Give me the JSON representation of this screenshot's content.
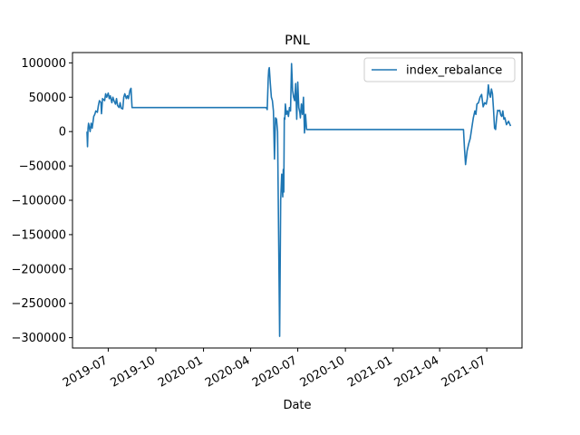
{
  "chart_data": {
    "type": "line",
    "title": "PNL",
    "xlabel": "Date",
    "ylabel": "",
    "ylim": [
      -315000,
      115000
    ],
    "xlim": [
      "2019-04-23",
      "2021-09-07"
    ],
    "yticks": [
      100000,
      50000,
      0,
      -50000,
      -100000,
      -150000,
      -200000,
      -250000,
      -300000
    ],
    "ytick_labels": [
      "100000",
      "50000",
      "0",
      "−50000",
      "−100000",
      "−150000",
      "−200000",
      "−250000",
      "−300000"
    ],
    "xticks": [
      "2019-07-01",
      "2019-10-01",
      "2020-01-01",
      "2020-04-01",
      "2020-07-01",
      "2020-10-01",
      "2021-01-01",
      "2021-04-01",
      "2021-07-01"
    ],
    "xtick_labels": [
      "2019-07",
      "2019-10",
      "2020-01",
      "2020-04",
      "2020-07",
      "2020-10",
      "2021-01",
      "2021-04",
      "2021-07"
    ],
    "legend": {
      "placement": "top-right",
      "entries": [
        "index_rebalance"
      ]
    },
    "grid": false,
    "series": [
      {
        "name": "index_rebalance",
        "color": "#1f77b4",
        "x": [
          "2019-05-21",
          "2019-05-22",
          "2019-05-23",
          "2019-05-24",
          "2019-05-27",
          "2019-05-29",
          "2019-05-31",
          "2019-06-03",
          "2019-06-05",
          "2019-06-07",
          "2019-06-10",
          "2019-06-12",
          "2019-06-14",
          "2019-06-17",
          "2019-06-18",
          "2019-06-20",
          "2019-06-24",
          "2019-06-26",
          "2019-06-28",
          "2019-07-01",
          "2019-07-03",
          "2019-07-05",
          "2019-07-08",
          "2019-07-10",
          "2019-07-12",
          "2019-07-15",
          "2019-07-17",
          "2019-07-19",
          "2019-07-22",
          "2019-07-24",
          "2019-07-26",
          "2019-07-29",
          "2019-07-31",
          "2019-08-02",
          "2019-08-05",
          "2019-08-07",
          "2019-08-09",
          "2019-08-12",
          "2019-08-14",
          "2019-08-16",
          "2019-08-18",
          "2020-05-01",
          "2020-05-03",
          "2020-05-05",
          "2020-05-06",
          "2020-05-07",
          "2020-05-09",
          "2020-05-11",
          "2020-05-13",
          "2020-05-15",
          "2020-05-17",
          "2020-05-19",
          "2020-05-21",
          "2020-05-23",
          "2020-05-25",
          "2020-05-27",
          "2020-05-29",
          "2020-05-31",
          "2020-06-01",
          "2020-06-02",
          "2020-06-03",
          "2020-06-04",
          "2020-06-05",
          "2020-06-06",
          "2020-06-07",
          "2020-06-09",
          "2020-06-11",
          "2020-06-13",
          "2020-06-15",
          "2020-06-17",
          "2020-06-19",
          "2020-06-21",
          "2020-06-23",
          "2020-06-25",
          "2020-06-27",
          "2020-06-29",
          "2020-07-01",
          "2020-07-03",
          "2020-07-05",
          "2020-07-06",
          "2020-07-08",
          "2020-07-10",
          "2020-07-12",
          "2020-07-14",
          "2020-07-16",
          "2020-07-18",
          "2020-07-20",
          "2020-07-22",
          "2020-07-24",
          "2020-07-26",
          "2020-07-28",
          "2020-07-30",
          "2020-08-01",
          "2020-08-03",
          "2020-08-06",
          "2020-08-10",
          "2021-05-05",
          "2021-05-08",
          "2021-05-11",
          "2021-05-14",
          "2021-05-17",
          "2021-05-19",
          "2021-05-21",
          "2021-05-24",
          "2021-05-27",
          "2021-05-30",
          "2021-06-02",
          "2021-06-05",
          "2021-06-08",
          "2021-06-10",
          "2021-06-12",
          "2021-06-15",
          "2021-06-18",
          "2021-06-21",
          "2021-06-24",
          "2021-06-27",
          "2021-06-30",
          "2021-07-02",
          "2021-07-04",
          "2021-07-06",
          "2021-07-08",
          "2021-07-10",
          "2021-07-12",
          "2021-07-14",
          "2021-07-16",
          "2021-07-18",
          "2021-07-20",
          "2021-07-22",
          "2021-07-24",
          "2021-07-26",
          "2021-07-28",
          "2021-07-30",
          "2021-08-01",
          "2021-08-03",
          "2021-08-05",
          "2021-08-08",
          "2021-08-12",
          "2021-08-16"
        ],
        "y": [
          0,
          -22000,
          5000,
          12000,
          0,
          12000,
          5000,
          22000,
          25000,
          30000,
          28000,
          38000,
          45000,
          42000,
          26000,
          48000,
          45000,
          55000,
          50000,
          56000,
          48000,
          52000,
          42000,
          50000,
          45000,
          40000,
          48000,
          38000,
          35000,
          42000,
          34000,
          33000,
          50000,
          55000,
          48000,
          52000,
          48000,
          60000,
          63000,
          35000,
          35000,
          35000,
          32000,
          78000,
          90000,
          93000,
          70000,
          50000,
          45000,
          30000,
          -40000,
          20000,
          18000,
          0,
          -150000,
          -298000,
          -100000,
          -62000,
          -80000,
          -95000,
          -55000,
          -88000,
          20000,
          18000,
          40000,
          25000,
          30000,
          22000,
          35000,
          30000,
          99000,
          60000,
          50000,
          45000,
          70000,
          18000,
          72000,
          35000,
          28000,
          20000,
          40000,
          25000,
          50000,
          -2000,
          25000,
          3000,
          3000,
          3000,
          3000,
          3000,
          3000,
          3000,
          3000,
          3000,
          3000,
          3000,
          3000,
          3000,
          3000,
          3000,
          3000,
          -25000,
          -48000,
          -28000,
          -18000,
          -10000,
          5000,
          20000,
          30000,
          25000,
          40000,
          42000,
          50000,
          54000,
          36000,
          42000,
          40000,
          48000,
          68000,
          55000,
          50000,
          62000,
          55000,
          32000,
          5000,
          3000,
          20000,
          31000,
          30000,
          31000,
          24000,
          22000,
          30000,
          18000,
          20000,
          10000,
          15000,
          8000
        ]
      }
    ]
  }
}
